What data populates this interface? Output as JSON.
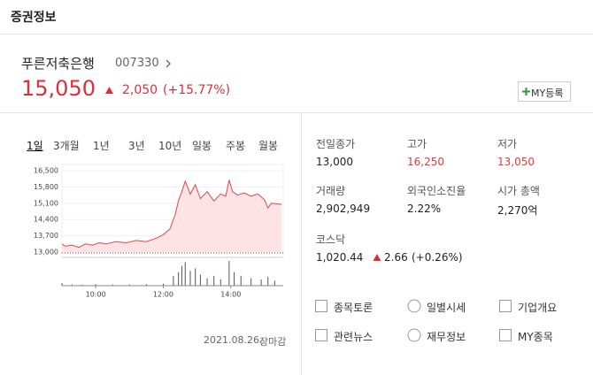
{
  "header": {
    "title": "증권정보"
  },
  "stock": {
    "name": "푸른저축은행",
    "code": "007330",
    "price": "15,050",
    "change": "2,050",
    "change_pct": "(+15.77%)",
    "my_button": "MY등록"
  },
  "tabs": [
    "1일",
    "3개월",
    "1년",
    "3년",
    "10년",
    "일봉",
    "주봉",
    "월봉"
  ],
  "chart_data": {
    "type": "line",
    "color": "#e0464f",
    "fill": "#fde3e3",
    "x": [
      9.0,
      9.1,
      9.3,
      9.5,
      9.7,
      9.9,
      10.1,
      10.3,
      10.6,
      10.9,
      11.2,
      11.5,
      11.8,
      12.0,
      12.2,
      12.35,
      12.45,
      12.55,
      12.65,
      12.8,
      12.95,
      13.1,
      13.3,
      13.5,
      13.7,
      13.85,
      13.95,
      14.05,
      14.2,
      14.4,
      14.6,
      14.8,
      15.0,
      15.1,
      15.2,
      15.5
    ],
    "series": [
      {
        "values": [
          13350,
          13250,
          13300,
          13200,
          13350,
          13300,
          13400,
          13350,
          13450,
          13400,
          13500,
          13450,
          13600,
          13750,
          14000,
          14600,
          15200,
          15600,
          16050,
          15500,
          15900,
          15300,
          15600,
          15200,
          15500,
          15400,
          16100,
          15600,
          15450,
          15550,
          15400,
          15500,
          15250,
          14900,
          15100,
          15050
        ]
      }
    ],
    "reference": 13000,
    "volume": {
      "color": "#555555",
      "x": [
        9.0,
        9.3,
        9.6,
        10.0,
        10.5,
        11.0,
        11.5,
        12.0,
        12.3,
        12.45,
        12.55,
        12.65,
        12.8,
        12.95,
        13.1,
        13.3,
        13.5,
        13.7,
        13.95,
        14.1,
        14.3,
        14.6,
        14.9,
        15.1,
        15.3
      ],
      "values": [
        10,
        5,
        4,
        6,
        5,
        5,
        6,
        8,
        40,
        55,
        80,
        95,
        60,
        70,
        45,
        30,
        40,
        25,
        100,
        55,
        40,
        30,
        25,
        35,
        20
      ]
    },
    "xlim": [
      9,
      15.5
    ],
    "xticks": [
      {
        "value": 10,
        "label": "10:00"
      },
      {
        "value": 12,
        "label": "12:00"
      },
      {
        "value": 14,
        "label": "14:00"
      }
    ],
    "ylim": [
      13000,
      16500
    ],
    "yticks": [
      {
        "value": 16500,
        "label": "16,500"
      },
      {
        "value": 15800,
        "label": "15,800"
      },
      {
        "value": 15100,
        "label": "15,100"
      },
      {
        "value": 14400,
        "label": "14,400"
      },
      {
        "value": 13700,
        "label": "13,700"
      },
      {
        "value": 13000,
        "label": "13,000"
      }
    ]
  },
  "date": "2021.08.26.",
  "status": "장마감",
  "stats": [
    {
      "label": "전일종가",
      "value": "13,000"
    },
    {
      "label": "고가",
      "value": "16,250",
      "color": "#e23b3b"
    },
    {
      "label": "저가",
      "value": "13,050",
      "color": "#e23b3b"
    },
    {
      "label": "거래량",
      "value": "2,902,949"
    },
    {
      "label": "외국인소진율",
      "value": "2.22%"
    },
    {
      "label": "시가 총액",
      "value": "2,270억"
    }
  ],
  "index": {
    "label": "코스닥",
    "value": "1,020.44",
    "change": "2.66",
    "change_pct": "(+0.26%)"
  },
  "links": [
    "종목토론",
    "일별시세",
    "기업개요",
    "관련뉴스",
    "재무정보",
    "MY종목"
  ]
}
